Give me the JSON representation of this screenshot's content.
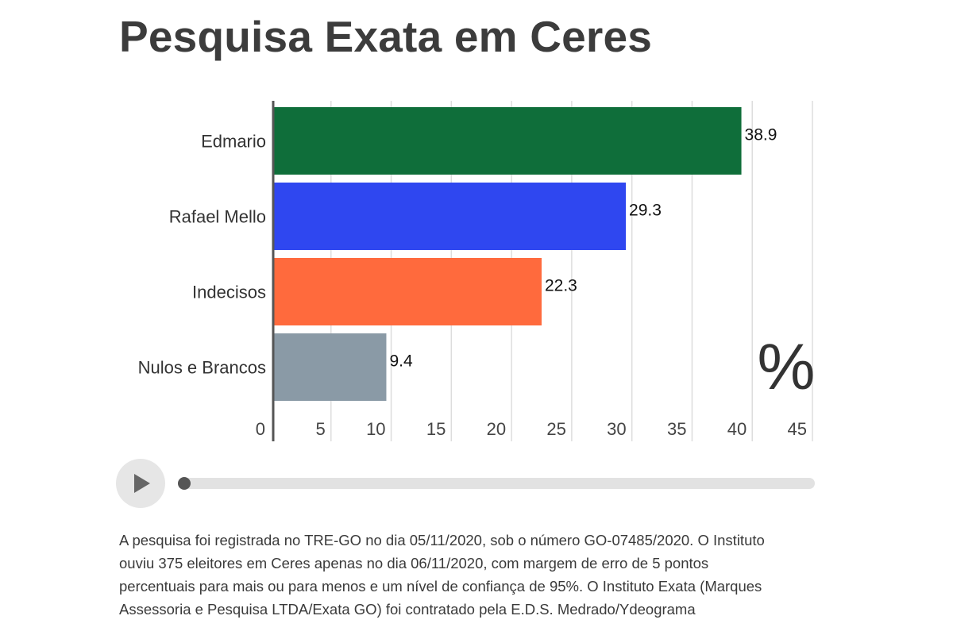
{
  "title": "Pesquisa Exata em Ceres",
  "chart_data": {
    "type": "bar",
    "orientation": "horizontal",
    "title": "Pesquisa Exata em Ceres",
    "unit_label": "%",
    "categories": [
      "Edmario",
      "Rafael Mello",
      "Indecisos",
      "Nulos e Brancos"
    ],
    "values": [
      38.9,
      29.3,
      22.3,
      9.4
    ],
    "value_labels": [
      "38.9",
      "29.3",
      "22.3",
      "9.4"
    ],
    "colors": [
      "#0f6e3a",
      "#2f47f0",
      "#ff6a3d",
      "#8a9aa6"
    ],
    "xlim": [
      0,
      45
    ],
    "xticks": [
      0,
      5,
      10,
      15,
      20,
      25,
      30,
      35,
      40,
      45
    ],
    "grid": true,
    "xlabel": "",
    "ylabel": ""
  },
  "player": {
    "progress": 0.0
  },
  "footnote": {
    "lines": [
      "A pesquisa foi registrada no TRE-GO no dia 05/11/2020, sob o número GO-07485/2020. O Instituto",
      "ouviu 375 eleitores em Ceres apenas no dia  06/11/2020, com margem de erro de 5 pontos",
      "percentuais para mais ou para menos e um nível de confiança de 95%. O Instituto Exata (Marques",
      "Assessoria e Pesquisa LTDA/Exata GO) foi contratado pela E.D.S. Medrado/Ydeograma"
    ]
  }
}
